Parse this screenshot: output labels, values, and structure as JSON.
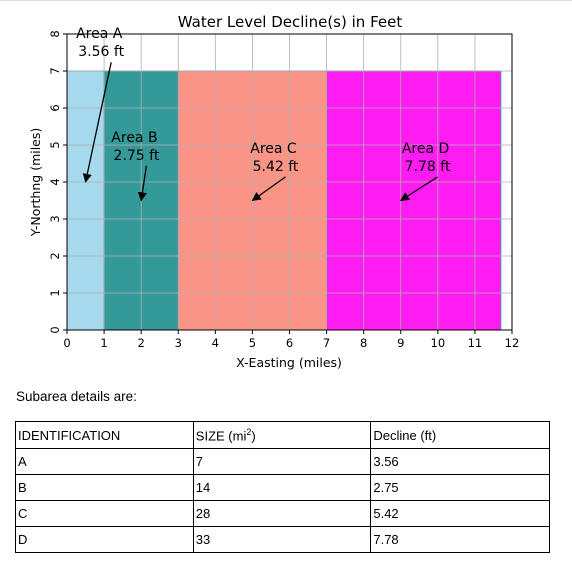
{
  "chart_data": {
    "type": "bar",
    "title": "Water Level Decline(s) in Feet",
    "xlabel": "X-Easting (miles)",
    "ylabel": "Y-Northng (miles)",
    "xlim": [
      0,
      12
    ],
    "ylim": [
      0,
      8
    ],
    "xticks": [
      "0",
      "1",
      "2",
      "3",
      "4",
      "5",
      "6",
      "7",
      "8",
      "9",
      "10",
      "11",
      "12"
    ],
    "yticks": [
      "0",
      "1",
      "2",
      "3",
      "4",
      "5",
      "6",
      "7",
      "8"
    ],
    "grid": true,
    "areas": [
      {
        "name": "Area A",
        "decline_label": "3.56 ft",
        "x_start": 0,
        "x_end": 1,
        "height": 7,
        "color": "#a6d8ee",
        "text_at": [
          1.3,
          7.4
        ],
        "arrow_to": [
          0.5,
          4.0
        ]
      },
      {
        "name": "Area B",
        "decline_label": "2.75 ft",
        "x_start": 1,
        "x_end": 3,
        "height": 7,
        "color": "#339999",
        "text_at": [
          2.25,
          4.6
        ],
        "arrow_to": [
          2.0,
          3.5
        ]
      },
      {
        "name": "Area C",
        "decline_label": "5.42 ft",
        "x_start": 3,
        "x_end": 7,
        "height": 7,
        "color": "#fa9486",
        "text_at": [
          6.0,
          4.3
        ],
        "arrow_to": [
          5.0,
          3.5
        ]
      },
      {
        "name": "Area D",
        "decline_label": "7.78 ft",
        "x_start": 7,
        "x_end": 11.7,
        "height": 7,
        "color": "#ff1cf2",
        "text_at": [
          10.1,
          4.3
        ],
        "arrow_to": [
          9.0,
          3.5
        ]
      }
    ]
  },
  "details": {
    "heading": "Subarea details are:",
    "headers": {
      "identification": "IDENTIFICATION",
      "size_prefix": "SIZE (mi",
      "size_sup": "2",
      "size_suffix": ")",
      "decline": "Decline (ft)"
    },
    "rows": [
      {
        "id": "A",
        "size": "7",
        "decline": "3.56"
      },
      {
        "id": "B",
        "size": "14",
        "decline": "2.75"
      },
      {
        "id": "C",
        "size": "28",
        "decline": "5.42"
      },
      {
        "id": "D",
        "size": "33",
        "decline": "7.78"
      }
    ]
  }
}
